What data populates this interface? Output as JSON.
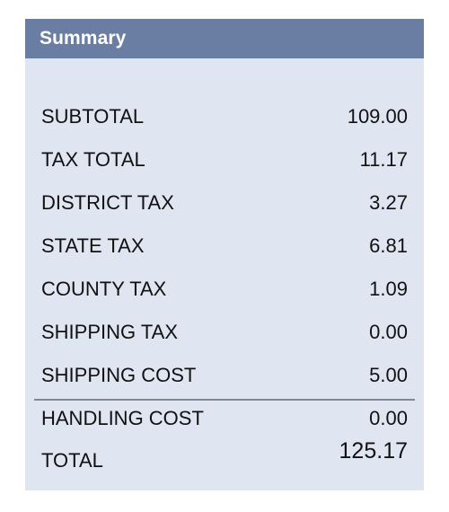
{
  "summary": {
    "title": "Summary",
    "rows": [
      {
        "label": "SUBTOTAL",
        "value": "109.00"
      },
      {
        "label": "TAX TOTAL",
        "value": "11.17"
      },
      {
        "label": "DISTRICT TAX",
        "value": "3.27"
      },
      {
        "label": "STATE TAX",
        "value": "6.81"
      },
      {
        "label": "COUNTY TAX",
        "value": "1.09"
      },
      {
        "label": "SHIPPING TAX",
        "value": "0.00"
      },
      {
        "label": "SHIPPING COST",
        "value": "5.00"
      },
      {
        "label": "HANDLING COST",
        "value": "0.00"
      }
    ],
    "total": {
      "label": "TOTAL",
      "value": "125.17"
    }
  },
  "colors": {
    "header_bg": "#6a7ea3",
    "panel_bg": "#dfe6f1",
    "divider": "#808a96"
  }
}
